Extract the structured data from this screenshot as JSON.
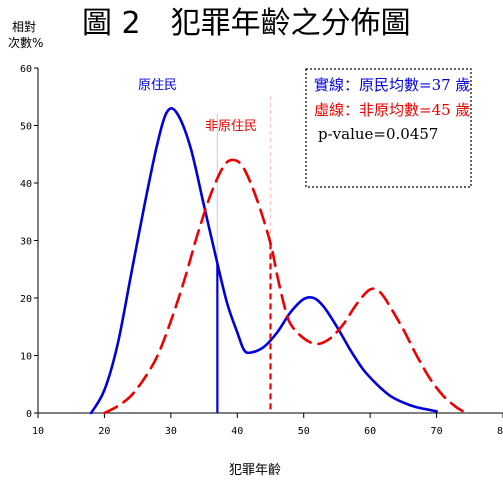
{
  "chart_data": {
    "type": "line",
    "title": "圖 2　犯罪年齡之分佈圖",
    "ylabel_line1": "相對",
    "ylabel_line2": "次數%",
    "xlabel": "犯罪年齡",
    "xlim": [
      10,
      80
    ],
    "ylim": [
      0,
      60
    ],
    "xticks": [
      "10",
      "20",
      "30",
      "40",
      "50",
      "60",
      "70",
      "80"
    ],
    "yticks": [
      "0",
      "10",
      "20",
      "30",
      "40",
      "50",
      "60"
    ],
    "grid": false,
    "legend_position": "top-right",
    "series": [
      {
        "name": "原住民",
        "style": "solid",
        "color": "#0000dd",
        "mean": 37,
        "points": [
          [
            18,
            0
          ],
          [
            20,
            4
          ],
          [
            22,
            12
          ],
          [
            24,
            24
          ],
          [
            26,
            36
          ],
          [
            28,
            47
          ],
          [
            29.5,
            52.5
          ],
          [
            31,
            52
          ],
          [
            33,
            46
          ],
          [
            35,
            36
          ],
          [
            37,
            26
          ],
          [
            38.5,
            19
          ],
          [
            40,
            14
          ],
          [
            41,
            11
          ],
          [
            42,
            10.5
          ],
          [
            44,
            11.5
          ],
          [
            46,
            14
          ],
          [
            48,
            17.5
          ],
          [
            50,
            19.8
          ],
          [
            51.5,
            20
          ],
          [
            53,
            18.5
          ],
          [
            55,
            15
          ],
          [
            57,
            11
          ],
          [
            59,
            7.5
          ],
          [
            61,
            5
          ],
          [
            63,
            3
          ],
          [
            65,
            1.8
          ],
          [
            67,
            1
          ],
          [
            70,
            0.3
          ]
        ]
      },
      {
        "name": "非原住民",
        "style": "dashed",
        "color": "#ee0000",
        "mean": 45,
        "points": [
          [
            20,
            0
          ],
          [
            22,
            1.2
          ],
          [
            24,
            3
          ],
          [
            26,
            6
          ],
          [
            28,
            10
          ],
          [
            30,
            16
          ],
          [
            32,
            23
          ],
          [
            34,
            31
          ],
          [
            36,
            38
          ],
          [
            38,
            43
          ],
          [
            39.5,
            44
          ],
          [
            41,
            42.5
          ],
          [
            43,
            37
          ],
          [
            45,
            29.5
          ],
          [
            46,
            24
          ],
          [
            47,
            19
          ],
          [
            48,
            15.5
          ],
          [
            50,
            13
          ],
          [
            52,
            12
          ],
          [
            54,
            13
          ],
          [
            56,
            15.5
          ],
          [
            58,
            19
          ],
          [
            60,
            21.5
          ],
          [
            61.5,
            21
          ],
          [
            63,
            18.5
          ],
          [
            65,
            14.5
          ],
          [
            67,
            10
          ],
          [
            69,
            6
          ],
          [
            71,
            3
          ],
          [
            73,
            1
          ],
          [
            74,
            0.3
          ]
        ]
      }
    ],
    "legend": {
      "solid_text": "實線：原民均數=37 歲",
      "dashed_text": "虛線：非原均數=45 歲",
      "pvalue_text": "p-value=0.0457"
    }
  }
}
